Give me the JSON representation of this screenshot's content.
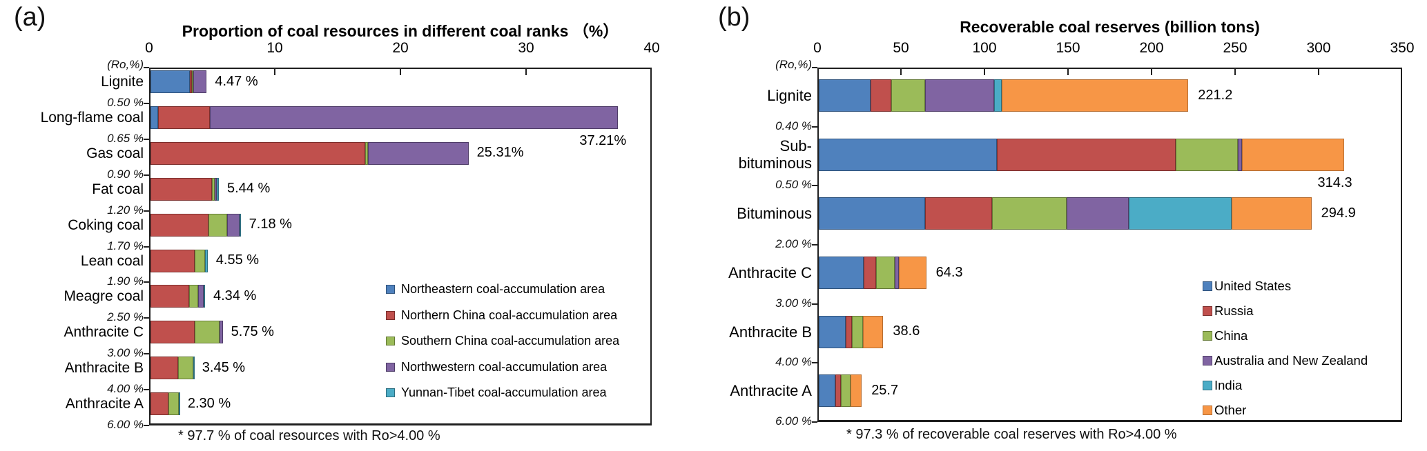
{
  "chart_data": [
    {
      "type": "bar",
      "subtype": "stacked-horizontal",
      "panel_label": "(a)",
      "title": "Proportion of coal resources in different coal ranks （%）",
      "axis_corner_label": "(Ro,%)",
      "x_ticks": [
        0,
        10,
        20,
        30,
        40
      ],
      "xlim": [
        0,
        40
      ],
      "grid": false,
      "legend_position": "inside-right-bottom",
      "series": [
        {
          "name": "Northeastern coal-accumulation area",
          "color": "#4f81bd",
          "border_color": "#2e527c"
        },
        {
          "name": "Northern China coal-accumulation area",
          "color": "#c0504d",
          "border_color": "#7c2f2d"
        },
        {
          "name": "Southern China coal-accumulation area",
          "color": "#9bbb59",
          "border_color": "#647a36"
        },
        {
          "name": "Northwestern coal-accumulation area",
          "color": "#8064a2",
          "border_color": "#4f3d68"
        },
        {
          "name": "Yunnan-Tibet coal-accumulation area",
          "color": "#4bacc6",
          "border_color": "#2d6e80"
        }
      ],
      "rows": [
        {
          "category": "Lignite",
          "ro_label": "0.50 %",
          "value_label": "4.47 %",
          "total": 4.47,
          "values": [
            3.15,
            0.15,
            0.12,
            1.05,
            0
          ]
        },
        {
          "category": "Long-flame coal",
          "ro_label": "0.65 %",
          "value_label": "37.21%",
          "total": 37.21,
          "values": [
            0.6,
            4.1,
            0,
            32.51,
            0
          ]
        },
        {
          "category": "Gas coal",
          "ro_label": "0.90 %",
          "value_label": "25.31%",
          "total": 25.31,
          "values": [
            0,
            17.1,
            0.2,
            8.01,
            0
          ]
        },
        {
          "category": "Fat coal",
          "ro_label": "1.20 %",
          "value_label": "5.44 %",
          "total": 5.44,
          "values": [
            0,
            4.9,
            0.2,
            0.15,
            0.19
          ]
        },
        {
          "category": "Coking coal",
          "ro_label": "1.70 %",
          "value_label": "7.18 %",
          "total": 7.18,
          "values": [
            0,
            4.6,
            1.5,
            1.0,
            0.08
          ]
        },
        {
          "category": "Lean coal",
          "ro_label": "1.90 %",
          "value_label": "4.55 %",
          "total": 4.55,
          "values": [
            0,
            3.5,
            0.85,
            0,
            0.2
          ]
        },
        {
          "category": "Meagre coal",
          "ro_label": "2.50 %",
          "value_label": "4.34 %",
          "total": 4.34,
          "values": [
            0,
            3.1,
            0.7,
            0.45,
            0.09
          ]
        },
        {
          "category": "Anthracite C",
          "ro_label": "3.00 %",
          "value_label": "5.75 %",
          "total": 5.75,
          "values": [
            0,
            3.5,
            2.0,
            0.25,
            0
          ]
        },
        {
          "category": "Anthracite B",
          "ro_label": "4.00 %",
          "value_label": "3.45 %",
          "total": 3.45,
          "values": [
            0,
            2.2,
            1.2,
            0,
            0.05
          ]
        },
        {
          "category": "Anthracite A",
          "ro_label": "6.00 %",
          "value_label": "2.30 %",
          "total": 2.3,
          "values": [
            0,
            1.45,
            0.8,
            0,
            0.05
          ]
        }
      ],
      "footnote": "* 97.7 % of coal resources with Ro>4.00 %"
    },
    {
      "type": "bar",
      "subtype": "stacked-horizontal",
      "panel_label": "(b)",
      "title": "Recoverable coal reserves (billion tons)",
      "axis_corner_label": "(Ro,%)",
      "x_ticks": [
        0,
        50,
        100,
        150,
        200,
        250,
        300,
        350
      ],
      "xlim": [
        0,
        350
      ],
      "grid": false,
      "legend_position": "inside-right-bottom",
      "series": [
        {
          "name": "United States",
          "color": "#4f81bd",
          "border_color": "#2e527c"
        },
        {
          "name": "Russia",
          "color": "#c0504d",
          "border_color": "#7c2f2d"
        },
        {
          "name": "China",
          "color": "#9bbb59",
          "border_color": "#647a36"
        },
        {
          "name": "Australia and New Zealand",
          "color": "#8064a2",
          "border_color": "#4f3d68"
        },
        {
          "name": "India",
          "color": "#4bacc6",
          "border_color": "#2d6e80"
        },
        {
          "name": "Other",
          "color": "#f79646",
          "border_color": "#b66d31"
        }
      ],
      "rows": [
        {
          "category": "Lignite",
          "ro_label": "0.40 %",
          "value_label": "221.2",
          "total": 221.2,
          "values": [
            31.0,
            12.2,
            20.4,
            41.2,
            4.9,
            111.5
          ]
        },
        {
          "category": "Sub-bituminous",
          "category_lines": [
            "Sub-",
            "bituminous"
          ],
          "ro_label": "0.50 %",
          "value_label": "314.3",
          "total": 314.3,
          "values": [
            106.5,
            107.0,
            37.2,
            2.8,
            0,
            60.8
          ]
        },
        {
          "category": "Bituminous",
          "ro_label": "2.00 %",
          "value_label": "294.9",
          "total": 294.9,
          "values": [
            63.6,
            40.3,
            44.4,
            37.1,
            61.9,
            47.6
          ]
        },
        {
          "category": "Anthracite C",
          "ro_label": "3.00 %",
          "value_label": "64.3",
          "total": 64.3,
          "values": [
            26.7,
            7.6,
            11.3,
            2.2,
            0,
            16.5
          ]
        },
        {
          "category": "Anthracite B",
          "ro_label": "4.00 %",
          "value_label": "38.6",
          "total": 38.6,
          "values": [
            16.0,
            4.0,
            6.6,
            0,
            0,
            12.0
          ]
        },
        {
          "category": "Anthracite A",
          "ro_label": "6.00 %",
          "value_label": "25.7",
          "total": 25.7,
          "values": [
            10.0,
            3.2,
            5.8,
            0,
            0,
            6.7
          ]
        }
      ],
      "footnote": "* 97.3 % of recoverable coal reserves with Ro>4.00 %"
    }
  ]
}
